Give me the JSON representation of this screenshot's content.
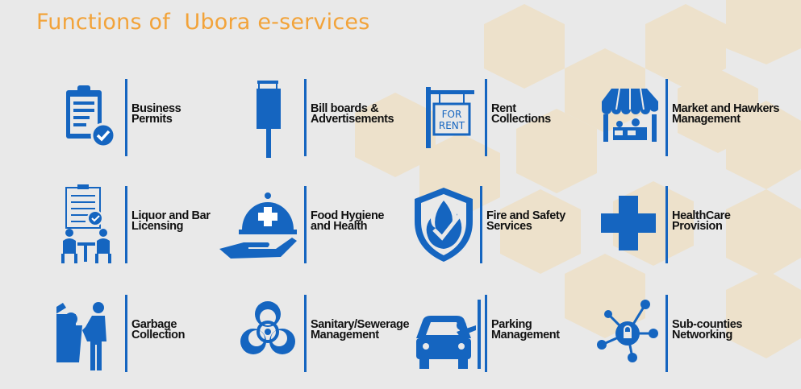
{
  "title": "Functions of  Ubora e-services",
  "colors": {
    "accent": "#f2a33a",
    "icon_blue": "#1565c0",
    "background": "#e9e9e9",
    "honeycomb": "#ede0c8"
  },
  "items": [
    {
      "line1": "Business",
      "line2": "Permits",
      "icon": "clipboard-check-icon"
    },
    {
      "line1": "Bill boards &",
      "line2": "Advertisements",
      "icon": "billboard-icon"
    },
    {
      "line1": "Rent",
      "line2": "Collections",
      "icon": "for-rent-sign-icon",
      "sign_line1": "FOR",
      "sign_line2": "RENT"
    },
    {
      "line1": "Market and Hawkers",
      "line2": "Management",
      "icon": "market-stall-icon"
    },
    {
      "line1": "Liquor and Bar",
      "line2": "Licensing",
      "icon": "meeting-document-icon"
    },
    {
      "line1": "Food Hygiene",
      "line2": "and Health",
      "icon": "food-cloche-icon"
    },
    {
      "line1": "Fire and Safety",
      "line2": "Services",
      "icon": "fire-shield-icon"
    },
    {
      "line1": "HealthCare",
      "line2": "Provision",
      "icon": "medical-cross-icon"
    },
    {
      "line1": "Garbage",
      "line2": "Collection",
      "icon": "garbage-bin-person-icon"
    },
    {
      "line1": "Sanitary/Sewerage",
      "line2": "Management",
      "icon": "biohazard-icon"
    },
    {
      "line1": "Parking",
      "line2": "Management",
      "icon": "parking-car-icon"
    },
    {
      "line1": "Sub-counties",
      "line2": "Networking",
      "icon": "network-nodes-icon"
    }
  ]
}
